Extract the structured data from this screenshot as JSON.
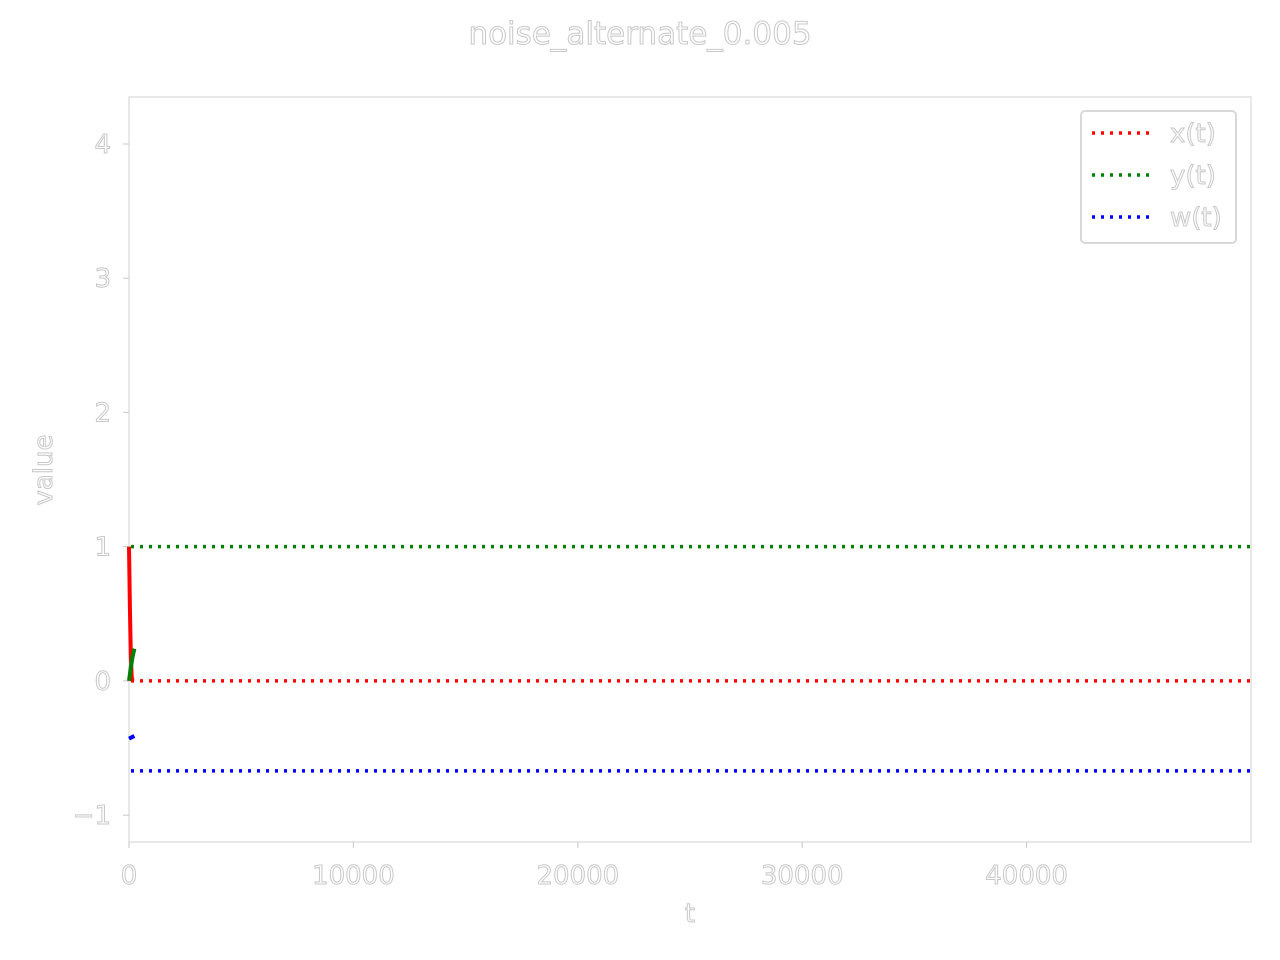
{
  "chart_data": {
    "type": "line",
    "title": "noise_alternate_0.005",
    "xlabel": "t",
    "ylabel": "value",
    "xlim": [
      0,
      50000
    ],
    "ylim": [
      -1.2,
      4.35
    ],
    "xticks": [
      0,
      10000,
      20000,
      30000,
      40000
    ],
    "xtick_labels": [
      "0",
      "10000",
      "20000",
      "30000",
      "40000"
    ],
    "yticks": [
      -1,
      0,
      1,
      2,
      3,
      4
    ],
    "ytick_labels": [
      "−1",
      "0",
      "1",
      "2",
      "3",
      "4"
    ],
    "grid": false,
    "legend_position": "top-right",
    "series": [
      {
        "name": "x(t)",
        "color": "#ff0000",
        "style": "dotted",
        "transient": [
          [
            0,
            1.0
          ],
          [
            40,
            0.55
          ],
          [
            80,
            0.2
          ],
          [
            120,
            0.03
          ],
          [
            160,
            0.0
          ]
        ],
        "steady_value": 0.0
      },
      {
        "name": "y(t)",
        "color": "#008000",
        "style": "dotted",
        "transient": [
          [
            0,
            0.0
          ],
          [
            80,
            0.1
          ],
          [
            160,
            0.18
          ],
          [
            240,
            0.24
          ]
        ],
        "steady_value": 1.0
      },
      {
        "name": "w(t)",
        "color": "#0000ff",
        "style": "dotted",
        "transient": [
          [
            0,
            -0.43
          ],
          [
            120,
            -0.42
          ],
          [
            240,
            -0.41
          ]
        ],
        "steady_value": -0.67
      }
    ]
  }
}
